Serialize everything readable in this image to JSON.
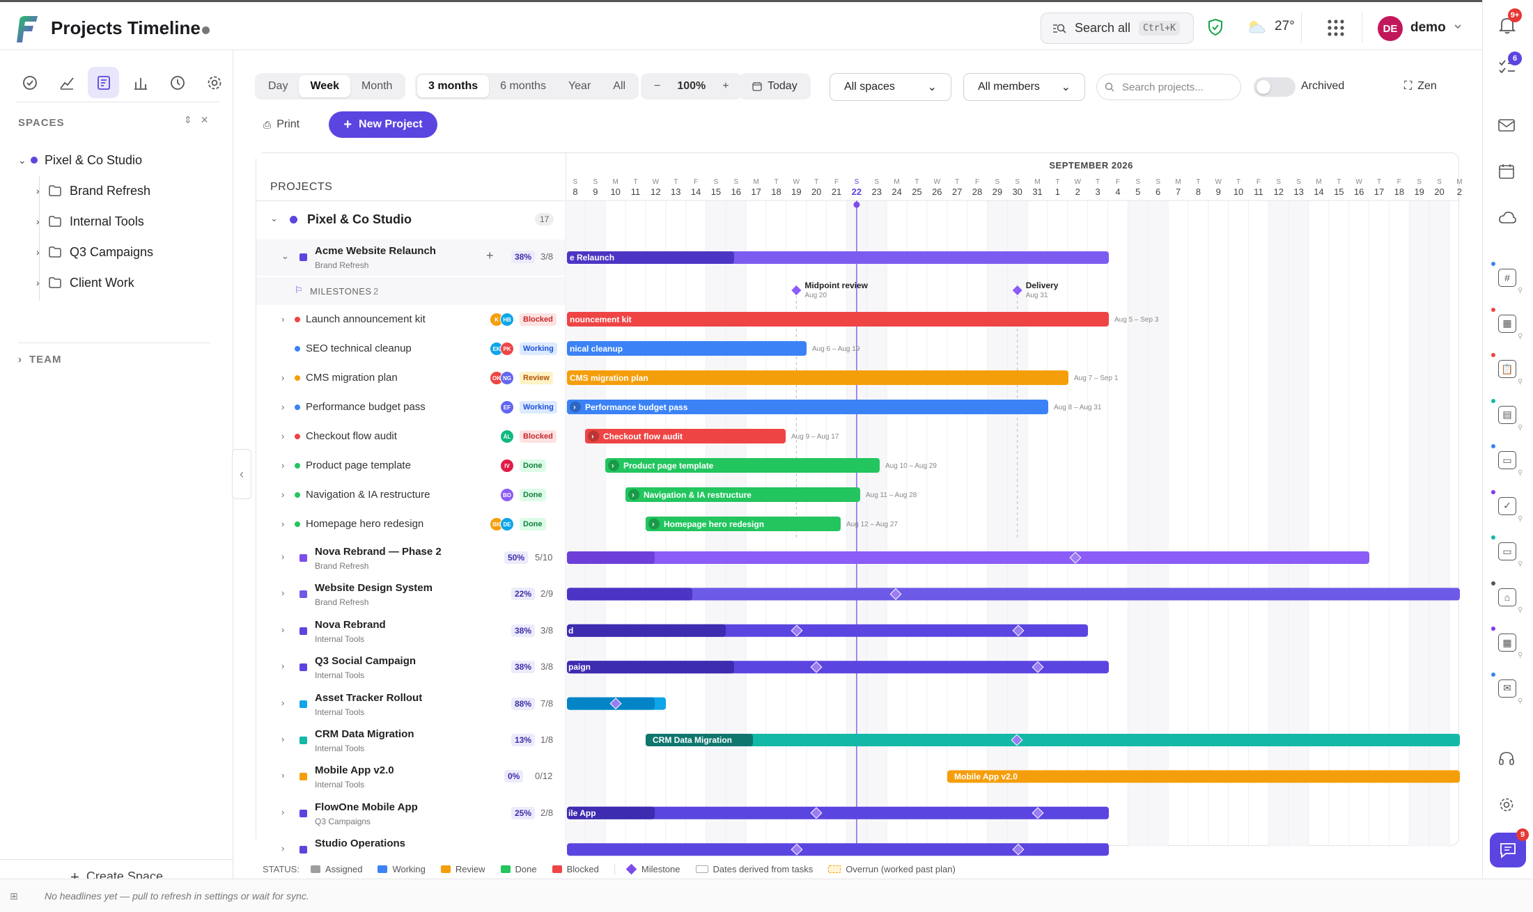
{
  "app": {
    "title": "Projects Timeline"
  },
  "topbar": {
    "search_label": "Search all",
    "search_kbd": "Ctrl+K",
    "weather": "27°",
    "avatar": "DE",
    "user": "demo",
    "notif_count": "9+",
    "tasks_count": "6"
  },
  "leftnav": {
    "spaces_heading": "SPACES",
    "space": "Pixel & Co Studio",
    "folders": [
      "Brand Refresh",
      "Internal Tools",
      "Q3 Campaigns",
      "Client Work"
    ],
    "team_heading": "TEAM",
    "create_space": "Create Space"
  },
  "toolbar": {
    "views": [
      "Day",
      "Week",
      "Month"
    ],
    "active_view": "Week",
    "ranges": [
      "3 months",
      "6 months",
      "Year",
      "All"
    ],
    "active_range": "3 months",
    "zoom": "100%",
    "today": "Today",
    "spaces_select": "All spaces",
    "members_select": "All members",
    "search_placeholder": "Search projects...",
    "archived": "Archived",
    "zen": "Zen",
    "print": "Print",
    "new_project": "New Project"
  },
  "colors": {
    "assigned": "#9e9e9e",
    "working": "#3b82f6",
    "review": "#f59e0b",
    "done": "#22c55e",
    "blocked": "#ef4444",
    "accent": "#5b45e0",
    "purple": "#7c4dea",
    "teal": "#14b8a6"
  },
  "timeline": {
    "month_label": "SEPTEMBER 2026",
    "days": [
      {
        "l": "S",
        "n": "8"
      },
      {
        "l": "S",
        "n": "9"
      },
      {
        "l": "M",
        "n": "10"
      },
      {
        "l": "T",
        "n": "11"
      },
      {
        "l": "W",
        "n": "12"
      },
      {
        "l": "T",
        "n": "13"
      },
      {
        "l": "F",
        "n": "14"
      },
      {
        "l": "S",
        "n": "15"
      },
      {
        "l": "S",
        "n": "16"
      },
      {
        "l": "M",
        "n": "17"
      },
      {
        "l": "T",
        "n": "18"
      },
      {
        "l": "W",
        "n": "19"
      },
      {
        "l": "T",
        "n": "20"
      },
      {
        "l": "F",
        "n": "21"
      },
      {
        "l": "S",
        "n": "22"
      },
      {
        "l": "S",
        "n": "23"
      },
      {
        "l": "M",
        "n": "24"
      },
      {
        "l": "T",
        "n": "25"
      },
      {
        "l": "W",
        "n": "26"
      },
      {
        "l": "T",
        "n": "27"
      },
      {
        "l": "F",
        "n": "28"
      },
      {
        "l": "S",
        "n": "29"
      },
      {
        "l": "S",
        "n": "30"
      },
      {
        "l": "M",
        "n": "31"
      },
      {
        "l": "T",
        "n": "1"
      },
      {
        "l": "W",
        "n": "2"
      },
      {
        "l": "T",
        "n": "3"
      },
      {
        "l": "F",
        "n": "4"
      },
      {
        "l": "S",
        "n": "5"
      },
      {
        "l": "S",
        "n": "6"
      },
      {
        "l": "M",
        "n": "7"
      },
      {
        "l": "T",
        "n": "8"
      },
      {
        "l": "W",
        "n": "9"
      },
      {
        "l": "T",
        "n": "10"
      },
      {
        "l": "F",
        "n": "11"
      },
      {
        "l": "S",
        "n": "12"
      },
      {
        "l": "S",
        "n": "13"
      },
      {
        "l": "M",
        "n": "14"
      },
      {
        "l": "T",
        "n": "15"
      },
      {
        "l": "W",
        "n": "16"
      },
      {
        "l": "T",
        "n": "17"
      },
      {
        "l": "F",
        "n": "18"
      },
      {
        "l": "S",
        "n": "19"
      },
      {
        "l": "S",
        "n": "20"
      },
      {
        "l": "M",
        "n": "2"
      }
    ],
    "today_day": "22"
  },
  "panel": {
    "heading": "PROJECTS",
    "space_name": "Pixel & Co Studio",
    "space_count": "17",
    "milestones_label": "MILESTONES",
    "milestones_count": "2"
  },
  "acme": {
    "name": "Acme Website Relaunch",
    "sub": "Brand Refresh",
    "pct": "38%",
    "count": "3/8",
    "bar_label": "e Relaunch"
  },
  "milestones": [
    {
      "name": "Midpoint review",
      "date": "Aug 20"
    },
    {
      "name": "Delivery",
      "date": "Aug 31"
    }
  ],
  "tasks": [
    {
      "name": "Launch announcement kit",
      "status": "Blocked",
      "avatars": [
        "K",
        "HB"
      ],
      "bar": "nouncement kit",
      "range": "Aug 5 – Sep 3"
    },
    {
      "name": "SEO technical cleanup",
      "status": "Working",
      "avatars": [
        "EK",
        "PK"
      ],
      "bar": "nical cleanup",
      "range": "Aug 6 – Aug 19"
    },
    {
      "name": "CMS migration plan",
      "status": "Review",
      "avatars": [
        "OK",
        "NG"
      ],
      "bar": "CMS migration plan",
      "range": "Aug 7 – Sep 1"
    },
    {
      "name": "Performance budget pass",
      "status": "Working",
      "avatars": [
        "EF"
      ],
      "bar": "Performance budget pass",
      "range": "Aug 8 – Aug 31"
    },
    {
      "name": "Checkout flow audit",
      "status": "Blocked",
      "avatars": [
        "ÁL"
      ],
      "bar": "Checkout flow audit",
      "range": "Aug 9 – Aug 17"
    },
    {
      "name": "Product page template",
      "status": "Done",
      "avatars": [
        "IV"
      ],
      "bar": "Product page template",
      "range": "Aug 10 – Aug 29"
    },
    {
      "name": "Navigation & IA restructure",
      "status": "Done",
      "avatars": [
        "BO"
      ],
      "bar": "Navigation & IA restructure",
      "range": "Aug 11 – Aug 28"
    },
    {
      "name": "Homepage hero redesign",
      "status": "Done",
      "avatars": [
        "BK",
        "DE"
      ],
      "bar": "Homepage hero redesign",
      "range": "Aug 12 – Aug 27"
    }
  ],
  "projects": [
    {
      "name": "Nova Rebrand — Phase 2",
      "sub": "Brand Refresh",
      "pct": "50%",
      "count": "5/10",
      "bar": ""
    },
    {
      "name": "Website Design System",
      "sub": "Brand Refresh",
      "pct": "22%",
      "count": "2/9",
      "bar": ""
    },
    {
      "name": "Nova Rebrand",
      "sub": "Internal Tools",
      "pct": "38%",
      "count": "3/8",
      "bar": "d"
    },
    {
      "name": "Q3 Social Campaign",
      "sub": "Internal Tools",
      "pct": "38%",
      "count": "3/8",
      "bar": "paign"
    },
    {
      "name": "Asset Tracker Rollout",
      "sub": "Internal Tools",
      "pct": "88%",
      "count": "7/8",
      "bar": ""
    },
    {
      "name": "CRM Data Migration",
      "sub": "Internal Tools",
      "pct": "13%",
      "count": "1/8",
      "bar": "CRM Data Migration"
    },
    {
      "name": "Mobile App v2.0",
      "sub": "Internal Tools",
      "pct": "0%",
      "count": "0/12",
      "bar": "Mobile App v2.0"
    },
    {
      "name": "FlowOne Mobile App",
      "sub": "Q3 Campaigns",
      "pct": "25%",
      "count": "2/8",
      "bar": "ile App"
    },
    {
      "name": "Studio Operations",
      "sub": "",
      "pct": "",
      "count": "",
      "bar": ""
    }
  ],
  "legend": {
    "status": "STATUS:",
    "assigned": "Assigned",
    "working": "Working",
    "review": "Review",
    "done": "Done",
    "blocked": "Blocked",
    "milestone": "Milestone",
    "derived": "Dates derived from tasks",
    "overrun": "Overrun (worked past plan)"
  },
  "statusbar": {
    "text": "No headlines yet — pull to refresh in settings or wait for sync."
  },
  "rightrail": {
    "chat_count": "9"
  }
}
